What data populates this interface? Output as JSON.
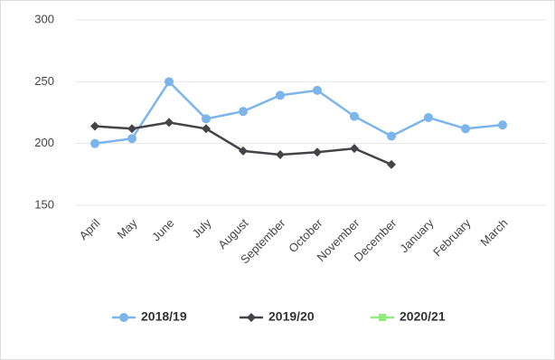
{
  "chart_data": {
    "type": "line",
    "categories": [
      "April",
      "May",
      "June",
      "July",
      "August",
      "September",
      "October",
      "November",
      "December",
      "January",
      "February",
      "March"
    ],
    "series": [
      {
        "name": "2018/19",
        "color": "#7cb5ec",
        "marker": "circle",
        "values": [
          200,
          204,
          250,
          220,
          226,
          239,
          243,
          222,
          206,
          221,
          212,
          215
        ]
      },
      {
        "name": "2019/20",
        "color": "#434348",
        "marker": "diamond",
        "values": [
          214,
          212,
          217,
          212,
          194,
          191,
          193,
          196,
          183,
          null,
          null,
          null
        ]
      },
      {
        "name": "2020/21",
        "color": "#90ed7d",
        "marker": "square",
        "values": [
          null,
          null,
          null,
          null,
          null,
          null,
          null,
          null,
          null,
          null,
          null,
          null
        ]
      }
    ],
    "ylim": [
      150,
      300
    ],
    "yticks": [
      150,
      200,
      250,
      300
    ],
    "grid": true
  }
}
